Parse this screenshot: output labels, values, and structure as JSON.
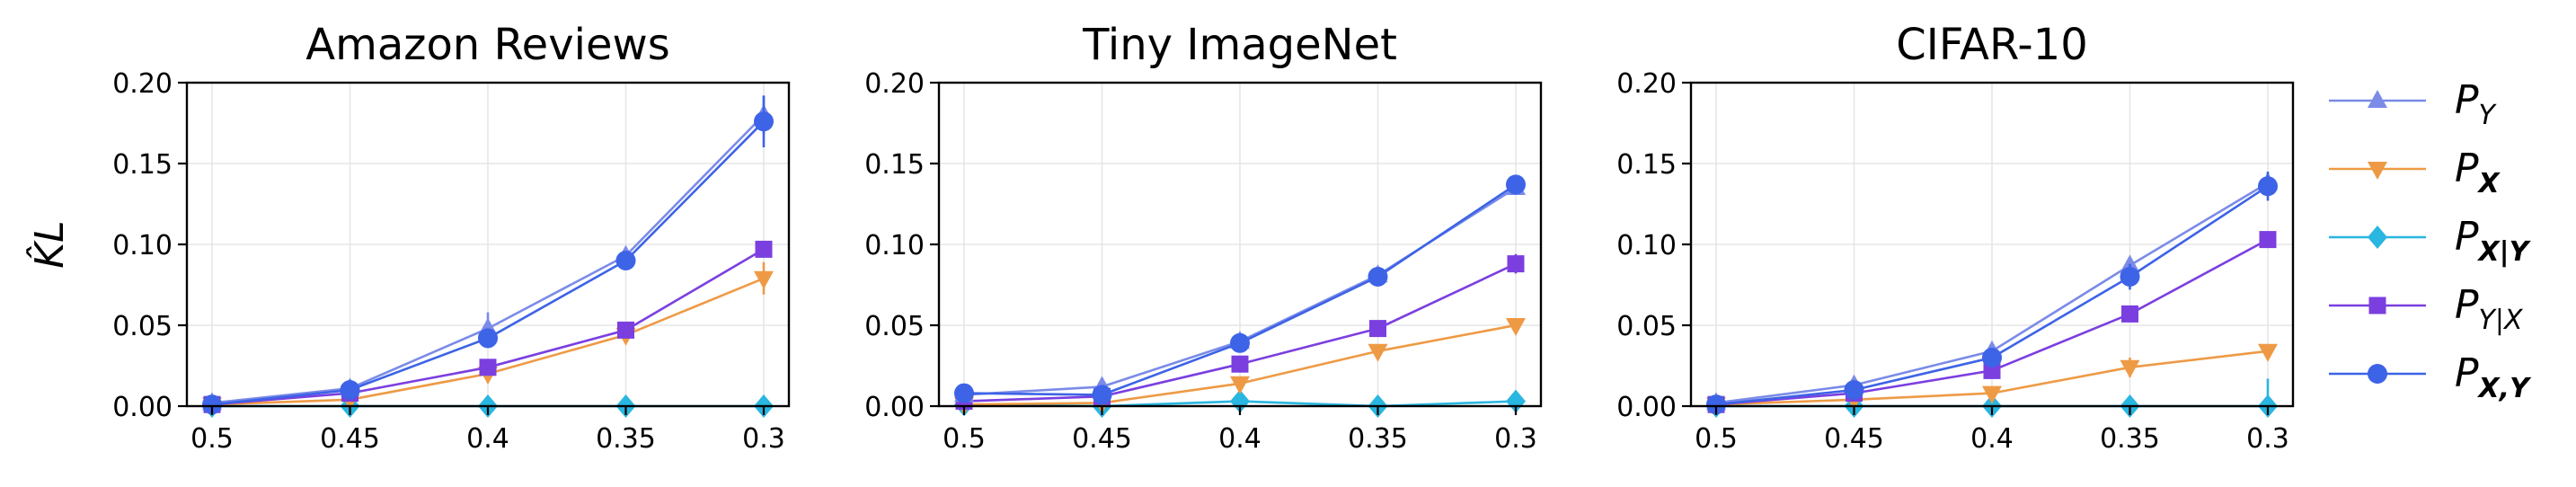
{
  "y_axis_label": "K̂L",
  "colors": {
    "P_Y": "#7b8be8",
    "P_X": "#ee9a45",
    "P_X_given_Y": "#29b6e0",
    "P_Y_given_X": "#7b3fe0",
    "P_XY": "#3d63e6"
  },
  "legend": [
    {
      "key": "P_Y",
      "main": "P",
      "sub": "Y",
      "sub_bold": false,
      "marker": "triangle-up"
    },
    {
      "key": "P_X",
      "main": "P",
      "sub": "X",
      "sub_bold": true,
      "marker": "triangle-down"
    },
    {
      "key": "P_X_given_Y",
      "main": "P",
      "sub": "X|Y",
      "sub_bold": true,
      "marker": "diamond"
    },
    {
      "key": "P_Y_given_X",
      "main": "P",
      "sub": "Y|X",
      "sub_bold": false,
      "marker": "square"
    },
    {
      "key": "P_XY",
      "main": "P",
      "sub": "X,Y",
      "sub_bold": true,
      "marker": "circle"
    }
  ],
  "chart_data": [
    {
      "type": "line",
      "title": "Amazon Reviews",
      "xlabel": "",
      "ylabel": "K̂L",
      "categories": [
        "0.5",
        "0.45",
        "0.4",
        "0.35",
        "0.3"
      ],
      "ylim": [
        0,
        0.2
      ],
      "yticks": [
        "0.00",
        "0.05",
        "0.10",
        "0.15",
        "0.20"
      ],
      "grid": true,
      "series": [
        {
          "name": "P_Y",
          "values": [
            0.002,
            0.011,
            0.048,
            0.093,
            0.18
          ],
          "err": [
            0.001,
            0.002,
            0.01,
            0.005,
            0.012
          ]
        },
        {
          "name": "P_X",
          "values": [
            0.001,
            0.004,
            0.02,
            0.044,
            0.079
          ],
          "err": [
            0.001,
            0.001,
            0.003,
            0.004,
            0.01
          ]
        },
        {
          "name": "P_X_given_Y",
          "values": [
            0.0,
            0.0,
            0.0,
            0.0,
            0.0
          ],
          "err": [
            0.0,
            0.0,
            0.003,
            0.003,
            0.006
          ]
        },
        {
          "name": "P_Y_given_X",
          "values": [
            0.001,
            0.008,
            0.024,
            0.047,
            0.097
          ],
          "err": [
            0.001,
            0.001,
            0.002,
            0.002,
            0.003
          ]
        },
        {
          "name": "P_XY",
          "values": [
            0.001,
            0.01,
            0.042,
            0.09,
            0.176
          ],
          "err": [
            0.001,
            0.002,
            0.006,
            0.004,
            0.016
          ]
        }
      ]
    },
    {
      "type": "line",
      "title": "Tiny ImageNet",
      "xlabel": "",
      "ylabel": "",
      "categories": [
        "0.5",
        "0.45",
        "0.4",
        "0.35",
        "0.3"
      ],
      "ylim": [
        0,
        0.2
      ],
      "yticks": [
        "0.00",
        "0.05",
        "0.10",
        "0.15",
        "0.20"
      ],
      "grid": true,
      "series": [
        {
          "name": "P_Y",
          "values": [
            0.007,
            0.012,
            0.04,
            0.081,
            0.135
          ],
          "err": [
            0.002,
            0.002,
            0.003,
            0.003,
            0.004
          ]
        },
        {
          "name": "P_X",
          "values": [
            0.001,
            0.002,
            0.014,
            0.034,
            0.05
          ],
          "err": [
            0.001,
            0.001,
            0.002,
            0.003,
            0.004
          ]
        },
        {
          "name": "P_X_given_Y",
          "values": [
            0.001,
            0.0,
            0.003,
            0.0,
            0.003
          ],
          "err": [
            0.001,
            0.0,
            0.003,
            0.002,
            0.004
          ]
        },
        {
          "name": "P_Y_given_X",
          "values": [
            0.003,
            0.006,
            0.026,
            0.048,
            0.088
          ],
          "err": [
            0.001,
            0.001,
            0.002,
            0.003,
            0.006
          ]
        },
        {
          "name": "P_XY",
          "values": [
            0.008,
            0.007,
            0.039,
            0.08,
            0.137
          ],
          "err": [
            0.002,
            0.002,
            0.003,
            0.003,
            0.003
          ]
        }
      ]
    },
    {
      "type": "line",
      "title": "CIFAR-10",
      "xlabel": "",
      "ylabel": "",
      "categories": [
        "0.5",
        "0.45",
        "0.4",
        "0.35",
        "0.3"
      ],
      "ylim": [
        0,
        0.2
      ],
      "yticks": [
        "0.00",
        "0.05",
        "0.10",
        "0.15",
        "0.20"
      ],
      "grid": true,
      "series": [
        {
          "name": "P_Y",
          "values": [
            0.002,
            0.013,
            0.034,
            0.087,
            0.138
          ],
          "err": [
            0.001,
            0.002,
            0.003,
            0.004,
            0.006
          ]
        },
        {
          "name": "P_X",
          "values": [
            0.001,
            0.004,
            0.008,
            0.024,
            0.034
          ],
          "err": [
            0.001,
            0.001,
            0.002,
            0.006,
            0.003
          ]
        },
        {
          "name": "P_X_given_Y",
          "values": [
            0.0,
            0.0,
            0.0,
            0.0,
            0.0
          ],
          "err": [
            0.0,
            0.0,
            0.0,
            0.003,
            0.017
          ]
        },
        {
          "name": "P_Y_given_X",
          "values": [
            0.001,
            0.008,
            0.022,
            0.057,
            0.103
          ],
          "err": [
            0.001,
            0.001,
            0.002,
            0.003,
            0.004
          ]
        },
        {
          "name": "P_XY",
          "values": [
            0.001,
            0.01,
            0.03,
            0.08,
            0.136
          ],
          "err": [
            0.001,
            0.002,
            0.003,
            0.008,
            0.009
          ]
        }
      ]
    }
  ]
}
